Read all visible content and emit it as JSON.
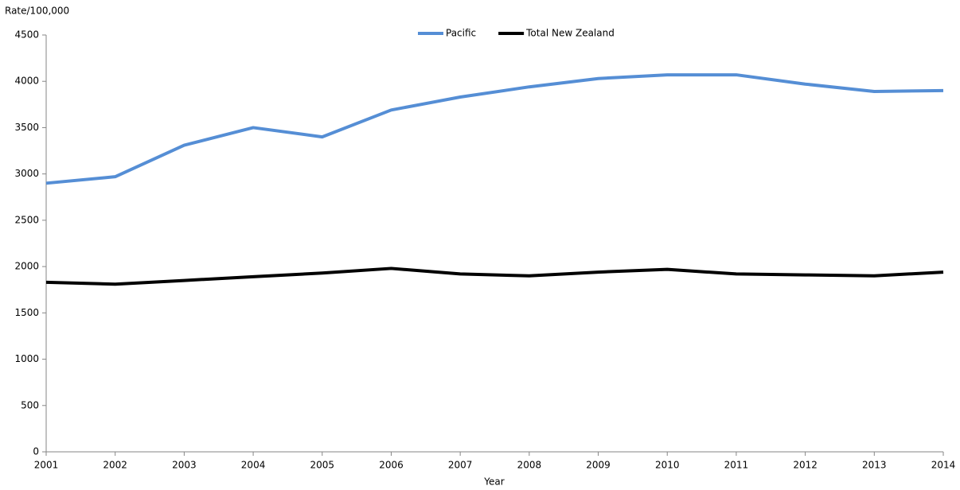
{
  "chart_data": {
    "type": "line",
    "y_label": "Rate/100,000",
    "x_label": "Year",
    "x": [
      2001,
      2002,
      2003,
      2004,
      2005,
      2006,
      2007,
      2008,
      2009,
      2010,
      2011,
      2012,
      2013,
      2014
    ],
    "series": [
      {
        "name": "Pacific",
        "color": "#558ed5",
        "values": [
          2900,
          2970,
          3310,
          3500,
          3400,
          3690,
          3830,
          3940,
          4030,
          4070,
          4070,
          3970,
          3890,
          3900
        ]
      },
      {
        "name": "Total New Zealand",
        "color": "#000000",
        "values": [
          1830,
          1810,
          1850,
          1890,
          1930,
          1980,
          1920,
          1900,
          1940,
          1970,
          1920,
          1910,
          1900,
          1940
        ]
      }
    ],
    "xlim": [
      2001,
      2014
    ],
    "xticks": [
      2001,
      2002,
      2003,
      2004,
      2005,
      2006,
      2007,
      2008,
      2009,
      2010,
      2011,
      2012,
      2013,
      2014
    ],
    "ylim": [
      0,
      4500
    ],
    "yticks": [
      0,
      500,
      1000,
      1500,
      2000,
      2500,
      3000,
      3500,
      4000,
      4500
    ],
    "grid": false,
    "legend": "top"
  }
}
